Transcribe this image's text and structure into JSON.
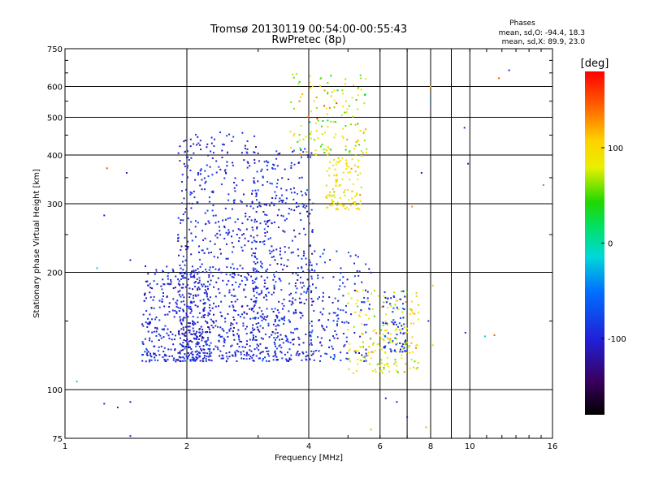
{
  "chart_data": {
    "type": "scatter",
    "title": "Tromsø 20130119 00:54:00-00:55:43",
    "subtitle": "RwPretec (8p)",
    "xlabel": "Frequency [MHz]",
    "ylabel": "Stationary phase Virtual Height [km]",
    "xscale": "log",
    "yscale": "log",
    "xlim": [
      1,
      16
    ],
    "ylim": [
      75,
      750
    ],
    "x_ticks": [
      1,
      2,
      4,
      6,
      8,
      10,
      16
    ],
    "x_tick_labels": [
      "1",
      "2",
      "4",
      "6",
      "8",
      "10",
      "16"
    ],
    "x_minor_gridlines": [
      7,
      9
    ],
    "y_ticks": [
      75,
      100,
      200,
      300,
      400,
      500,
      600,
      750
    ],
    "y_tick_labels": [
      "75",
      "100",
      "200",
      "300",
      "400",
      "500",
      "600",
      "750"
    ],
    "grid": true,
    "phases_header": "Phases",
    "phases_stats": [
      "mean, sd,O: -94.4, 18.3",
      "mean, sd,X:  89.9, 23.0"
    ],
    "colorbar": {
      "label": "[deg]",
      "range": [
        -180,
        180
      ],
      "tick_values": [
        100,
        0,
        -100
      ],
      "tick_labels": [
        "100",
        "0",
        "-100"
      ]
    },
    "clusters": [
      {
        "component": "O",
        "f_range": [
          1.55,
          2.3
        ],
        "h_range": [
          118,
          210
        ],
        "phase_mean": -98,
        "phase_sd": 15,
        "n": 380
      },
      {
        "component": "O",
        "f_range": [
          1.9,
          3.0
        ],
        "h_range": [
          118,
          460
        ],
        "phase_mean": -100,
        "phase_sd": 15,
        "n": 650
      },
      {
        "component": "O",
        "f_range": [
          2.9,
          4.1
        ],
        "h_range": [
          118,
          420
        ],
        "phase_mean": -96,
        "phase_sd": 18,
        "n": 500
      },
      {
        "component": "O",
        "f_range": [
          4.0,
          5.7
        ],
        "h_range": [
          118,
          230
        ],
        "phase_mean": -92,
        "phase_sd": 20,
        "n": 160
      },
      {
        "component": "X",
        "f_range": [
          4.4,
          5.4
        ],
        "h_range": [
          290,
          400
        ],
        "phase_mean": 95,
        "phase_sd": 15,
        "n": 110
      },
      {
        "component": "X",
        "f_range": [
          3.6,
          5.6
        ],
        "h_range": [
          400,
          660
        ],
        "phase_mean": 85,
        "phase_sd": 35,
        "n": 140
      },
      {
        "component": "X",
        "f_range": [
          5.0,
          7.5
        ],
        "h_range": [
          110,
          180
        ],
        "phase_mean": 88,
        "phase_sd": 22,
        "n": 180
      },
      {
        "component": "O",
        "f_range": [
          6.1,
          7.0
        ],
        "h_range": [
          125,
          180
        ],
        "phase_mean": -95,
        "phase_sd": 20,
        "n": 70
      }
    ],
    "outliers": [
      {
        "f": 1.07,
        "h": 105,
        "phase": -20
      },
      {
        "f": 1.25,
        "h": 92,
        "phase": -95
      },
      {
        "f": 1.35,
        "h": 90,
        "phase": -95
      },
      {
        "f": 1.45,
        "h": 93,
        "phase": -100
      },
      {
        "f": 1.25,
        "h": 280,
        "phase": -100
      },
      {
        "f": 1.27,
        "h": 370,
        "phase": 150
      },
      {
        "f": 1.42,
        "h": 360,
        "phase": -100
      },
      {
        "f": 1.2,
        "h": 205,
        "phase": -20
      },
      {
        "f": 1.45,
        "h": 215,
        "phase": -100
      },
      {
        "f": 1.45,
        "h": 76,
        "phase": -100
      },
      {
        "f": 7.2,
        "h": 295,
        "phase": 130
      },
      {
        "f": 7.6,
        "h": 360,
        "phase": -100
      },
      {
        "f": 8.0,
        "h": 600,
        "phase": 120
      },
      {
        "f": 9.7,
        "h": 470,
        "phase": -100
      },
      {
        "f": 9.9,
        "h": 380,
        "phase": -100
      },
      {
        "f": 9.75,
        "h": 140,
        "phase": -100
      },
      {
        "f": 10.9,
        "h": 137,
        "phase": -20
      },
      {
        "f": 11.5,
        "h": 138,
        "phase": 150
      },
      {
        "f": 12.5,
        "h": 660,
        "phase": -100
      },
      {
        "f": 11.8,
        "h": 630,
        "phase": 150
      },
      {
        "f": 15.2,
        "h": 335,
        "phase": 140
      },
      {
        "f": 8.0,
        "h": 550,
        "phase": -30
      },
      {
        "f": 6.2,
        "h": 95,
        "phase": -100
      },
      {
        "f": 6.6,
        "h": 93,
        "phase": -100
      },
      {
        "f": 7.0,
        "h": 85,
        "phase": -100
      },
      {
        "f": 7.8,
        "h": 80,
        "phase": 120
      },
      {
        "f": 5.7,
        "h": 79,
        "phase": 120
      },
      {
        "f": 8.1,
        "h": 185,
        "phase": 110
      },
      {
        "f": 8.1,
        "h": 130,
        "phase": 100
      },
      {
        "f": 7.9,
        "h": 150,
        "phase": -95
      }
    ]
  }
}
